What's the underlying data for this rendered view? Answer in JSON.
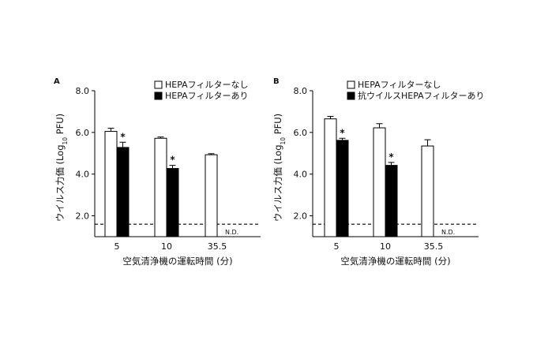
{
  "chart_data": [
    {
      "panel": "A",
      "type": "bar",
      "categories": [
        "5",
        "10",
        "35.5"
      ],
      "series": [
        {
          "name": "HEPAフィルターなし",
          "fill": "#ffffff",
          "values": [
            6.05,
            5.72,
            4.93
          ],
          "errors": [
            0.15,
            0.06,
            0.05
          ]
        },
        {
          "name": "HEPAフィルターあり",
          "fill": "#000000",
          "values": [
            5.28,
            4.27,
            null
          ],
          "errors": [
            0.25,
            0.15,
            null
          ]
        }
      ],
      "significance": [
        "*",
        "*",
        ""
      ],
      "not_detected_label": "N.D.",
      "detection_limit": 1.6,
      "ylim": [
        1.0,
        8.0
      ],
      "yticks": [
        "2.0",
        "4.0",
        "6.0",
        "8.0"
      ],
      "ylabel": "ウイルス力価 (Log10 PFU)",
      "xlabel": "空気清浄機の運転時間 (分)"
    },
    {
      "panel": "B",
      "type": "bar",
      "categories": [
        "5",
        "10",
        "35.5"
      ],
      "series": [
        {
          "name": "HEPAフィルターなし",
          "fill": "#ffffff",
          "values": [
            6.65,
            6.22,
            5.35
          ],
          "errors": [
            0.12,
            0.2,
            0.3
          ]
        },
        {
          "name": "抗ウイルスHEPAフィルターあり",
          "fill": "#000000",
          "values": [
            5.62,
            4.42,
            null
          ],
          "errors": [
            0.1,
            0.14,
            null
          ]
        }
      ],
      "significance": [
        "*",
        "*",
        ""
      ],
      "not_detected_label": "N.D.",
      "detection_limit": 1.6,
      "ylim": [
        1.0,
        8.0
      ],
      "yticks": [
        "2.0",
        "4.0",
        "6.0",
        "8.0"
      ],
      "ylabel": "ウイルス力価 (Log10 PFU)",
      "xlabel": "空気清浄機の運転時間 (分)"
    }
  ]
}
